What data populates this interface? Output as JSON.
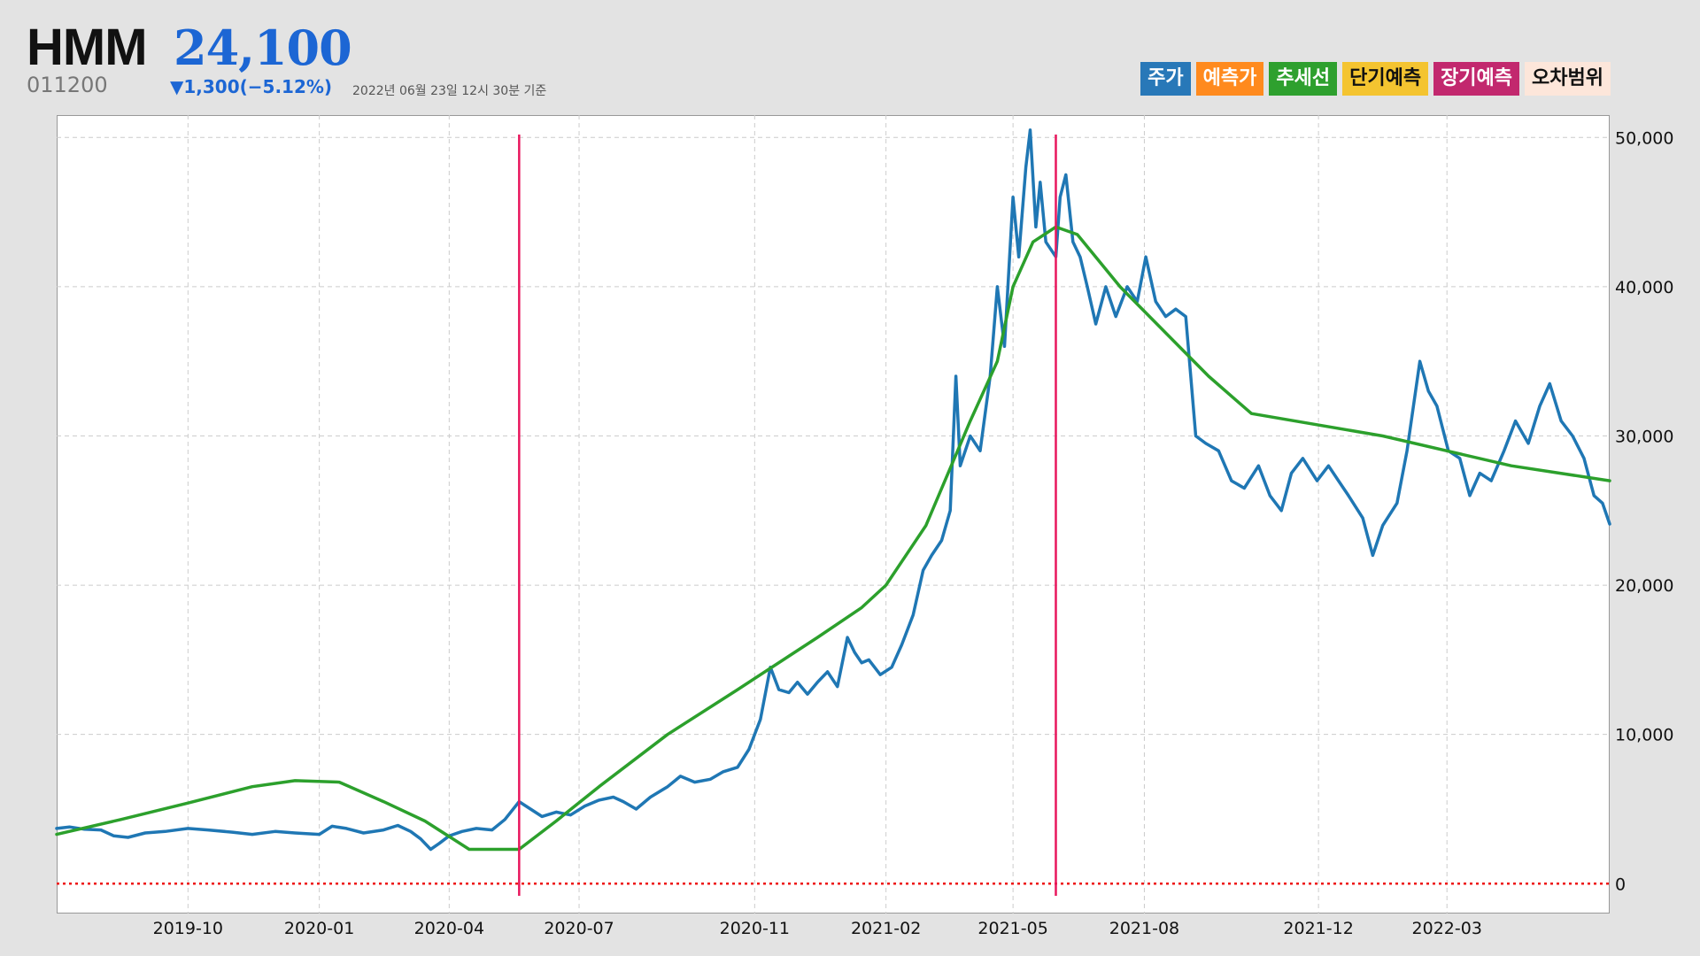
{
  "header": {
    "ticker": "HMM",
    "price": "24,100",
    "code": "011200",
    "change": "▼1,300(−5.12%)",
    "timestamp": "2022년 06월 23일 12시 30분 기준"
  },
  "legend": [
    {
      "label": "주가",
      "bg": "#2878b8",
      "fg": "#ffffff"
    },
    {
      "label": "예측가",
      "bg": "#ff8a1e",
      "fg": "#ffffff"
    },
    {
      "label": "추세선",
      "bg": "#2ea02e",
      "fg": "#ffffff"
    },
    {
      "label": "단기예측",
      "bg": "#f4c430",
      "fg": "#111111"
    },
    {
      "label": "장기예측",
      "bg": "#c2286e",
      "fg": "#ffffff"
    },
    {
      "label": "오차범위",
      "bg": "#fde6da",
      "fg": "#111111"
    }
  ],
  "colors": {
    "price": "#1f77b4",
    "trend": "#2ca02c",
    "marker": "#e8175d",
    "zero_line": "#ee1111",
    "grid": "#cccccc"
  },
  "chart_data": {
    "type": "line",
    "x_ticks": [
      "2019-10",
      "2020-01",
      "2020-04",
      "2020-07",
      "2020-11",
      "2021-02",
      "2021-05",
      "2021-08",
      "2021-12",
      "2022-03"
    ],
    "y_ticks": [
      "0",
      "10,000",
      "20,000",
      "30,000",
      "40,000",
      "50,000"
    ],
    "ylim": [
      -2000,
      51500
    ],
    "xlim": [
      "2019-07-01",
      "2022-06-23"
    ],
    "grid": true,
    "y_axis_position": "right",
    "vertical_markers": [
      "2020-05-20",
      "2021-05-31"
    ],
    "reference_line": {
      "y": 0,
      "style": "dotted"
    },
    "series": [
      {
        "name": "주가",
        "points": [
          [
            "2019-07-01",
            3700
          ],
          [
            "2019-07-10",
            3800
          ],
          [
            "2019-07-20",
            3650
          ],
          [
            "2019-08-01",
            3600
          ],
          [
            "2019-08-10",
            3200
          ],
          [
            "2019-08-20",
            3100
          ],
          [
            "2019-09-01",
            3400
          ],
          [
            "2019-09-15",
            3500
          ],
          [
            "2019-10-01",
            3700
          ],
          [
            "2019-10-15",
            3600
          ],
          [
            "2019-11-01",
            3450
          ],
          [
            "2019-11-15",
            3300
          ],
          [
            "2019-12-01",
            3500
          ],
          [
            "2019-12-15",
            3400
          ],
          [
            "2020-01-01",
            3300
          ],
          [
            "2020-01-10",
            3850
          ],
          [
            "2020-01-20",
            3700
          ],
          [
            "2020-02-01",
            3400
          ],
          [
            "2020-02-15",
            3600
          ],
          [
            "2020-02-25",
            3900
          ],
          [
            "2020-03-05",
            3500
          ],
          [
            "2020-03-12",
            3000
          ],
          [
            "2020-03-19",
            2300
          ],
          [
            "2020-03-25",
            2700
          ],
          [
            "2020-04-01",
            3200
          ],
          [
            "2020-04-10",
            3500
          ],
          [
            "2020-04-20",
            3700
          ],
          [
            "2020-05-01",
            3600
          ],
          [
            "2020-05-10",
            4300
          ],
          [
            "2020-05-20",
            5500
          ],
          [
            "2020-05-28",
            5000
          ],
          [
            "2020-06-05",
            4500
          ],
          [
            "2020-06-15",
            4800
          ],
          [
            "2020-06-25",
            4600
          ],
          [
            "2020-07-05",
            5200
          ],
          [
            "2020-07-15",
            5600
          ],
          [
            "2020-07-25",
            5800
          ],
          [
            "2020-08-01",
            5500
          ],
          [
            "2020-08-10",
            5000
          ],
          [
            "2020-08-20",
            5800
          ],
          [
            "2020-09-01",
            6500
          ],
          [
            "2020-09-10",
            7200
          ],
          [
            "2020-09-20",
            6800
          ],
          [
            "2020-10-01",
            7000
          ],
          [
            "2020-10-10",
            7500
          ],
          [
            "2020-10-20",
            7800
          ],
          [
            "2020-10-28",
            9000
          ],
          [
            "2020-11-05",
            11000
          ],
          [
            "2020-11-12",
            14500
          ],
          [
            "2020-11-18",
            13000
          ],
          [
            "2020-11-25",
            12800
          ],
          [
            "2020-12-01",
            13500
          ],
          [
            "2020-12-08",
            12700
          ],
          [
            "2020-12-15",
            13500
          ],
          [
            "2020-12-22",
            14200
          ],
          [
            "2020-12-29",
            13200
          ],
          [
            "2021-01-05",
            16500
          ],
          [
            "2021-01-10",
            15500
          ],
          [
            "2021-01-15",
            14800
          ],
          [
            "2021-01-20",
            15000
          ],
          [
            "2021-01-28",
            14000
          ],
          [
            "2021-02-05",
            14500
          ],
          [
            "2021-02-12",
            16000
          ],
          [
            "2021-02-20",
            18000
          ],
          [
            "2021-02-27",
            21000
          ],
          [
            "2021-03-05",
            22000
          ],
          [
            "2021-03-12",
            23000
          ],
          [
            "2021-03-18",
            25000
          ],
          [
            "2021-03-22",
            34000
          ],
          [
            "2021-03-25",
            28000
          ],
          [
            "2021-04-01",
            30000
          ],
          [
            "2021-04-08",
            29000
          ],
          [
            "2021-04-15",
            34000
          ],
          [
            "2021-04-20",
            40000
          ],
          [
            "2021-04-25",
            36000
          ],
          [
            "2021-05-01",
            46000
          ],
          [
            "2021-05-05",
            42000
          ],
          [
            "2021-05-10",
            48000
          ],
          [
            "2021-05-13",
            50500
          ],
          [
            "2021-05-17",
            44000
          ],
          [
            "2021-05-20",
            47000
          ],
          [
            "2021-05-24",
            43000
          ],
          [
            "2021-05-31",
            42000
          ],
          [
            "2021-06-03",
            46000
          ],
          [
            "2021-06-07",
            47500
          ],
          [
            "2021-06-12",
            43000
          ],
          [
            "2021-06-17",
            42000
          ],
          [
            "2021-06-22",
            40000
          ],
          [
            "2021-06-28",
            37500
          ],
          [
            "2021-07-05",
            40000
          ],
          [
            "2021-07-12",
            38000
          ],
          [
            "2021-07-20",
            40000
          ],
          [
            "2021-07-27",
            39000
          ],
          [
            "2021-08-02",
            42000
          ],
          [
            "2021-08-09",
            39000
          ],
          [
            "2021-08-16",
            38000
          ],
          [
            "2021-08-23",
            38500
          ],
          [
            "2021-08-30",
            38000
          ],
          [
            "2021-09-06",
            30000
          ],
          [
            "2021-09-13",
            29500
          ],
          [
            "2021-09-22",
            29000
          ],
          [
            "2021-10-01",
            27000
          ],
          [
            "2021-10-10",
            26500
          ],
          [
            "2021-10-20",
            28000
          ],
          [
            "2021-10-28",
            26000
          ],
          [
            "2021-11-05",
            25000
          ],
          [
            "2021-11-12",
            27500
          ],
          [
            "2021-11-20",
            28500
          ],
          [
            "2021-11-30",
            27000
          ],
          [
            "2021-12-08",
            28000
          ],
          [
            "2021-12-15",
            27000
          ],
          [
            "2021-12-22",
            26000
          ],
          [
            "2022-01-01",
            24500
          ],
          [
            "2022-01-08",
            22000
          ],
          [
            "2022-01-15",
            24000
          ],
          [
            "2022-01-25",
            25500
          ],
          [
            "2022-02-01",
            29000
          ],
          [
            "2022-02-10",
            35000
          ],
          [
            "2022-02-16",
            33000
          ],
          [
            "2022-02-22",
            32000
          ],
          [
            "2022-03-02",
            29000
          ],
          [
            "2022-03-10",
            28500
          ],
          [
            "2022-03-17",
            26000
          ],
          [
            "2022-03-24",
            27500
          ],
          [
            "2022-04-01",
            27000
          ],
          [
            "2022-04-10",
            29000
          ],
          [
            "2022-04-18",
            31000
          ],
          [
            "2022-04-27",
            29500
          ],
          [
            "2022-05-05",
            32000
          ],
          [
            "2022-05-12",
            33500
          ],
          [
            "2022-05-20",
            31000
          ],
          [
            "2022-05-28",
            30000
          ],
          [
            "2022-06-05",
            28500
          ],
          [
            "2022-06-12",
            26000
          ],
          [
            "2022-06-18",
            25500
          ],
          [
            "2022-06-23",
            24100
          ]
        ]
      },
      {
        "name": "추세선",
        "points": [
          [
            "2019-07-01",
            3300
          ],
          [
            "2019-08-15",
            4300
          ],
          [
            "2019-10-01",
            5400
          ],
          [
            "2019-11-15",
            6500
          ],
          [
            "2019-12-15",
            6900
          ],
          [
            "2020-01-15",
            6800
          ],
          [
            "2020-02-15",
            5500
          ],
          [
            "2020-03-15",
            4200
          ],
          [
            "2020-04-15",
            2300
          ],
          [
            "2020-05-20",
            2300
          ],
          [
            "2020-06-15",
            4200
          ],
          [
            "2020-07-15",
            6500
          ],
          [
            "2020-09-01",
            10000
          ],
          [
            "2020-10-20",
            13000
          ],
          [
            "2020-12-15",
            16500
          ],
          [
            "2021-01-15",
            18500
          ],
          [
            "2021-02-01",
            20000
          ],
          [
            "2021-03-01",
            24000
          ],
          [
            "2021-04-01",
            31000
          ],
          [
            "2021-04-20",
            35000
          ],
          [
            "2021-05-01",
            40000
          ],
          [
            "2021-05-15",
            43000
          ],
          [
            "2021-05-31",
            44000
          ],
          [
            "2021-06-15",
            43500
          ],
          [
            "2021-07-15",
            40000
          ],
          [
            "2021-08-15",
            37000
          ],
          [
            "2021-09-15",
            34000
          ],
          [
            "2021-10-15",
            31500
          ],
          [
            "2022-01-15",
            30000
          ],
          [
            "2022-04-15",
            28000
          ],
          [
            "2022-06-23",
            27000
          ]
        ]
      }
    ]
  }
}
